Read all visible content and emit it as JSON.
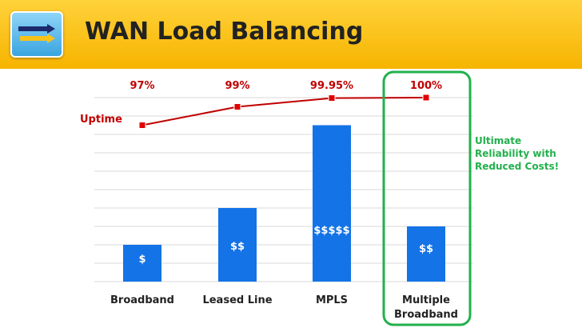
{
  "header": {
    "title": "WAN Load Balancing",
    "logo_icon": "arrows-logo-icon"
  },
  "chart_data": {
    "type": "bar",
    "categories": [
      "Broadband",
      "Leased Line",
      "MPLS",
      "Multiple Broadband"
    ],
    "category_lines": [
      [
        "Broadband"
      ],
      [
        "Leased Line"
      ],
      [
        "MPLS"
      ],
      [
        "Multiple",
        "Broadband"
      ]
    ],
    "series": [
      {
        "values": [
          20,
          40,
          85,
          30
        ],
        "bar_labels": [
          "$",
          "$$",
          "$$$$$",
          "$$"
        ]
      },
      {
        "name": "Uptime",
        "type": "line",
        "values": [
          97,
          99,
          99.95,
          100
        ],
        "labels": [
          "97%",
          "99%",
          "99.95%",
          "100%"
        ]
      }
    ],
    "grid": true,
    "annotation": {
      "lines": [
        "Ultimate",
        "Reliability with",
        "Reduced Costs!"
      ],
      "highlight_category": "Multiple Broadband"
    },
    "colors": {
      "bar": "#1473e6",
      "line": "#c00000",
      "marker": "#e00000",
      "highlight": "#22b14c",
      "bar_label": "#ffffff",
      "axis_text": "#222222"
    }
  }
}
